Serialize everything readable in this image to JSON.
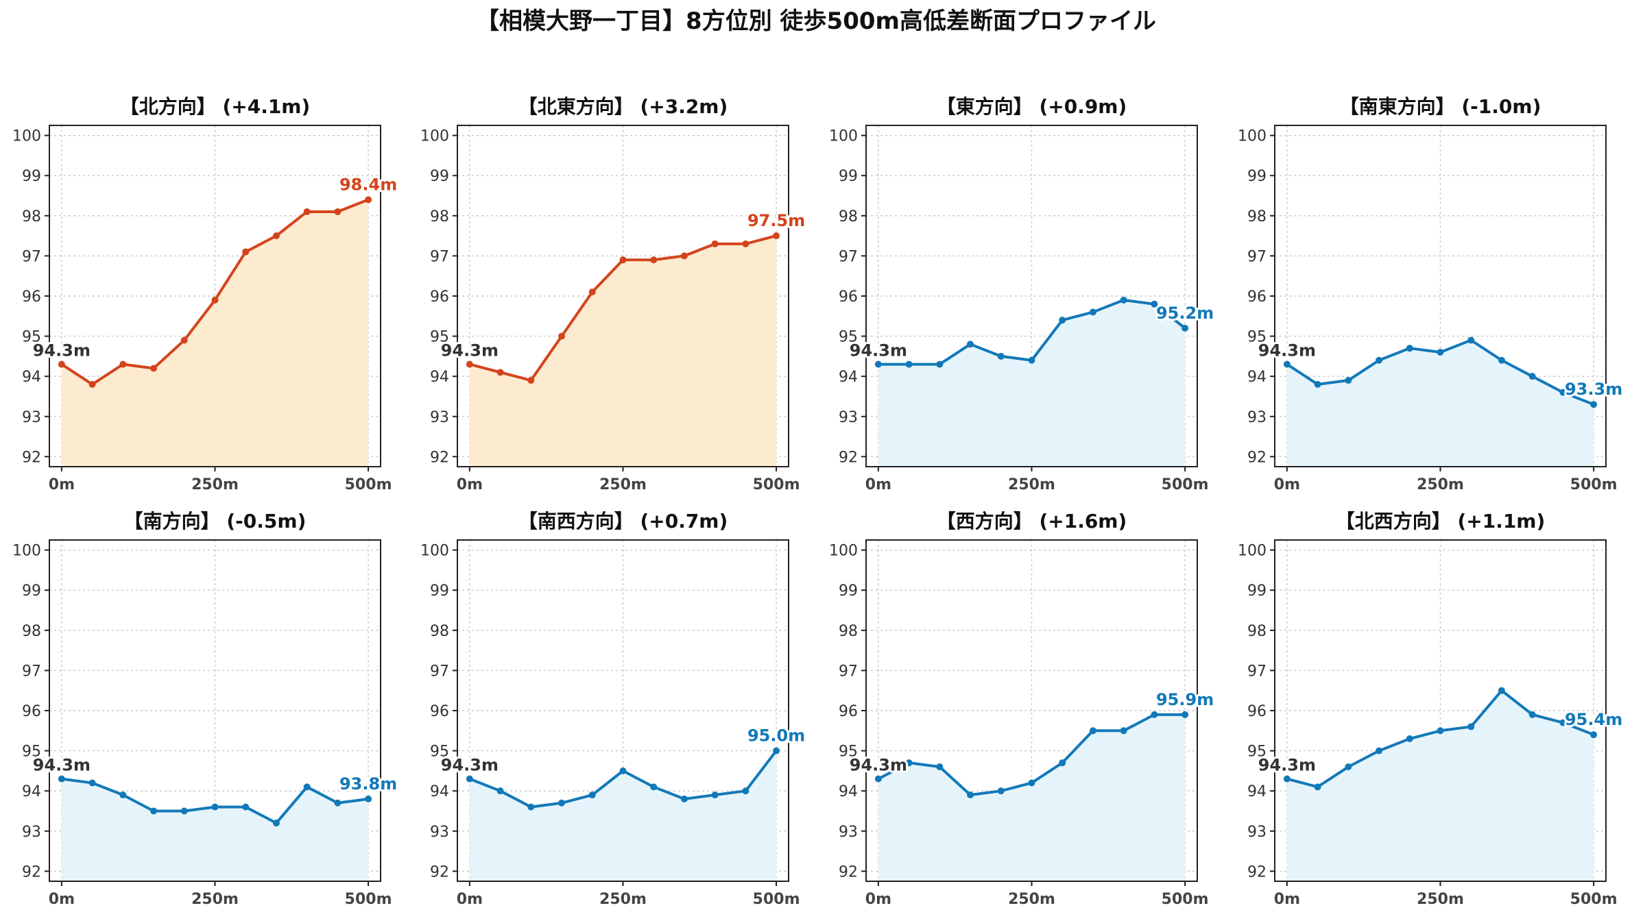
{
  "page": {
    "title": "【相模大野一丁目】8方位別 徒歩500m高低差断面プロファイル"
  },
  "colors": {
    "up": "#d4441c",
    "up_fill": "#fdebd0",
    "down": "#1279b8",
    "down_fill": "#e5f4fb",
    "start_label": "#333333",
    "grid": "#c8c8c8"
  },
  "axes": {
    "xlim": [
      -20,
      520
    ],
    "ylim": [
      91.75,
      100.25
    ],
    "yticks": [
      92,
      93,
      94,
      95,
      96,
      97,
      98,
      99,
      100
    ],
    "xticks": [
      0,
      250,
      500
    ],
    "xtick_labels": [
      "0m",
      "250m",
      "500m"
    ],
    "grid": true
  },
  "chart_data": [
    {
      "type": "area",
      "title": "【北方向】 (+4.1m)",
      "trend": "up",
      "x": [
        0,
        50,
        100,
        150,
        200,
        250,
        300,
        350,
        400,
        450,
        500
      ],
      "values": [
        94.3,
        93.8,
        94.3,
        94.2,
        94.9,
        95.9,
        97.1,
        97.5,
        98.1,
        98.1,
        98.4
      ],
      "start_label": "94.3m",
      "end_label": "98.4m"
    },
    {
      "type": "area",
      "title": "【北東方向】 (+3.2m)",
      "trend": "up",
      "x": [
        0,
        50,
        100,
        150,
        200,
        250,
        300,
        350,
        400,
        450,
        500
      ],
      "values": [
        94.3,
        94.1,
        93.9,
        95.0,
        96.1,
        96.9,
        96.9,
        97.0,
        97.3,
        97.3,
        97.5
      ],
      "start_label": "94.3m",
      "end_label": "97.5m"
    },
    {
      "type": "area",
      "title": "【東方向】 (+0.9m)",
      "trend": "down",
      "x": [
        0,
        50,
        100,
        150,
        200,
        250,
        300,
        350,
        400,
        450,
        500
      ],
      "values": [
        94.3,
        94.3,
        94.3,
        94.8,
        94.5,
        94.4,
        95.4,
        95.6,
        95.9,
        95.8,
        95.2
      ],
      "start_label": "94.3m",
      "end_label": "95.2m"
    },
    {
      "type": "area",
      "title": "【南東方向】 (-1.0m)",
      "trend": "down",
      "x": [
        0,
        50,
        100,
        150,
        200,
        250,
        300,
        350,
        400,
        450,
        500
      ],
      "values": [
        94.3,
        93.8,
        93.9,
        94.4,
        94.7,
        94.6,
        94.9,
        94.4,
        94.0,
        93.6,
        93.3
      ],
      "start_label": "94.3m",
      "end_label": "93.3m"
    },
    {
      "type": "area",
      "title": "【南方向】 (-0.5m)",
      "trend": "down",
      "x": [
        0,
        50,
        100,
        150,
        200,
        250,
        300,
        350,
        400,
        450,
        500
      ],
      "values": [
        94.3,
        94.2,
        93.9,
        93.5,
        93.5,
        93.6,
        93.6,
        93.2,
        94.1,
        93.7,
        93.8
      ],
      "start_label": "94.3m",
      "end_label": "93.8m"
    },
    {
      "type": "area",
      "title": "【南西方向】 (+0.7m)",
      "trend": "down",
      "x": [
        0,
        50,
        100,
        150,
        200,
        250,
        300,
        350,
        400,
        450,
        500
      ],
      "values": [
        94.3,
        94.0,
        93.6,
        93.7,
        93.9,
        94.5,
        94.1,
        93.8,
        93.9,
        94.0,
        95.0
      ],
      "start_label": "94.3m",
      "end_label": "95.0m"
    },
    {
      "type": "area",
      "title": "【西方向】 (+1.6m)",
      "trend": "down",
      "x": [
        0,
        50,
        100,
        150,
        200,
        250,
        300,
        350,
        400,
        450,
        500
      ],
      "values": [
        94.3,
        94.7,
        94.6,
        93.9,
        94.0,
        94.2,
        94.7,
        95.5,
        95.5,
        95.9,
        95.9
      ],
      "start_label": "94.3m",
      "end_label": "95.9m"
    },
    {
      "type": "area",
      "title": "【北西方向】 (+1.1m)",
      "trend": "down",
      "x": [
        0,
        50,
        100,
        150,
        200,
        250,
        300,
        350,
        400,
        450,
        500
      ],
      "values": [
        94.3,
        94.1,
        94.6,
        95.0,
        95.3,
        95.5,
        95.6,
        96.5,
        95.9,
        95.7,
        95.4
      ],
      "start_label": "94.3m",
      "end_label": "95.4m"
    }
  ]
}
